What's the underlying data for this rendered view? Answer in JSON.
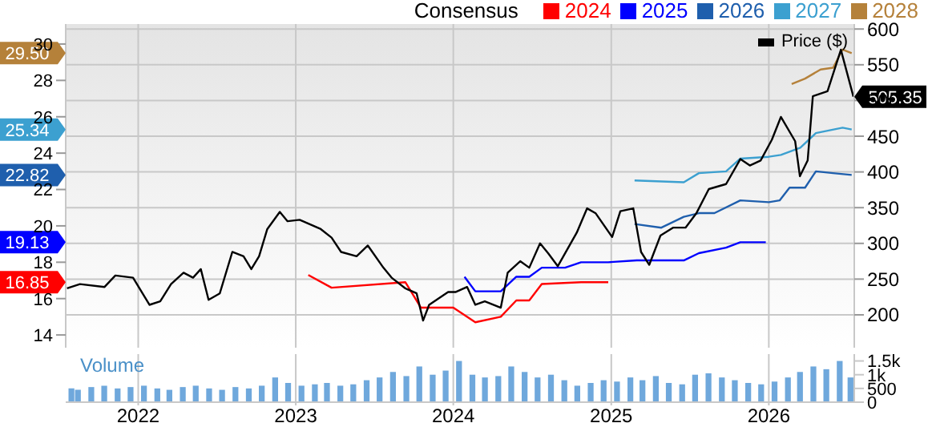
{
  "chart_data": [
    {
      "type": "line",
      "legend_title": "Consensus",
      "legend": "top right",
      "grid": true,
      "tick_labels": "y",
      "xlim": [
        "2021-07-17",
        "2026-07-18"
      ],
      "xticks": [
        {
          "value": "2022-01-01",
          "label": null
        },
        {
          "value": "2023-01-01",
          "label": null
        },
        {
          "value": "2024-01-01",
          "label": null
        },
        {
          "value": "2025-01-01",
          "label": null
        },
        {
          "value": "2026-01-01",
          "label": null
        }
      ],
      "ylim": [
        13.3,
        31.1
      ],
      "yticks": [
        14,
        16,
        18,
        20,
        22,
        24,
        26,
        28,
        30
      ],
      "annotations": [
        "16.85",
        "19.13",
        "22.82",
        "25.34",
        "29.50"
      ],
      "y2lim": [
        154,
        607
      ],
      "y2ticks": [
        200,
        250,
        300,
        350,
        400,
        450,
        500,
        550,
        600
      ],
      "series": [
        {
          "name": "2024",
          "color": "#ff0000",
          "x": [
            "2023-01-30",
            "2023-03-25",
            "2023-09-12",
            "2023-10-18",
            "2024-01-01",
            "2024-02-21",
            "2024-04-20",
            "2024-05-26",
            "2024-06-25",
            "2024-07-24",
            "2024-10-23",
            "2024-12-25"
          ],
          "values": [
            17.3,
            16.6,
            16.9,
            15.5,
            15.5,
            14.7,
            15.0,
            15.9,
            15.9,
            16.8,
            16.9,
            16.9
          ]
        },
        {
          "name": "2025",
          "color": "#0000ff",
          "x": [
            "2024-01-27",
            "2024-02-21",
            "2024-04-20",
            "2024-05-26",
            "2024-06-25",
            "2024-07-24",
            "2024-09-16",
            "2024-10-23",
            "2024-12-25",
            "2025-03-01",
            "2025-06-18",
            "2025-07-23",
            "2025-09-24",
            "2025-10-27",
            "2025-12-25"
          ],
          "values": [
            17.2,
            16.4,
            16.4,
            17.2,
            17.2,
            17.7,
            17.7,
            18.0,
            18.0,
            18.1,
            18.1,
            18.5,
            18.8,
            19.1,
            19.1
          ]
        },
        {
          "name": "2026",
          "color": "#1f5fad",
          "x": [
            "2025-02-24",
            "2025-04-27",
            "2025-06-18",
            "2025-07-23",
            "2025-08-28",
            "2025-10-27",
            "2026-01-01",
            "2026-01-26",
            "2026-02-18",
            "2026-03-26",
            "2026-04-20",
            "2026-05-30",
            "2026-07-12"
          ],
          "values": [
            20.1,
            19.9,
            20.5,
            20.7,
            20.7,
            21.4,
            21.3,
            21.4,
            22.1,
            22.1,
            23.0,
            22.9,
            22.8
          ]
        },
        {
          "name": "2027",
          "color": "#3ca0d0",
          "x": [
            "2025-02-24",
            "2025-06-18",
            "2025-07-23",
            "2025-09-24",
            "2025-10-27",
            "2026-01-01",
            "2026-01-29",
            "2026-03-15",
            "2026-04-20",
            "2026-06-21",
            "2026-07-12"
          ],
          "values": [
            22.5,
            22.4,
            22.9,
            23.0,
            23.7,
            23.8,
            23.9,
            24.3,
            25.1,
            25.4,
            25.3
          ]
        },
        {
          "name": "2028",
          "color": "#b5813a",
          "x": [
            "2026-02-23",
            "2026-03-26",
            "2026-05-01",
            "2026-05-30",
            "2026-06-21",
            "2026-07-12"
          ],
          "values": [
            27.8,
            28.1,
            28.6,
            28.7,
            29.7,
            29.5
          ]
        },
        {
          "name": "Price ($)",
          "color": "#000000",
          "axis": "y2",
          "x": [
            "2021-07-20",
            "2021-08-19",
            "2021-10-15",
            "2021-11-09",
            "2021-12-20",
            "2022-01-27",
            "2022-02-21",
            "2022-03-18",
            "2022-04-16",
            "2022-05-08",
            "2022-05-26",
            "2022-06-13",
            "2022-07-09",
            "2022-08-07",
            "2022-09-02",
            "2022-09-20",
            "2022-10-08",
            "2022-10-27",
            "2022-11-25",
            "2022-12-13",
            "2023-01-10",
            "2023-02-28",
            "2023-03-25",
            "2023-04-16",
            "2023-05-22",
            "2023-06-17",
            "2023-07-23",
            "2023-08-11",
            "2023-09-12",
            "2023-10-08",
            "2023-10-23",
            "2023-11-06",
            "2023-12-20",
            "2024-01-07",
            "2024-02-02",
            "2024-02-21",
            "2024-03-14",
            "2024-04-20",
            "2024-05-06",
            "2024-06-04",
            "2024-06-25",
            "2024-07-20",
            "2024-08-08",
            "2024-08-30",
            "2024-10-13",
            "2024-11-06",
            "2024-11-26",
            "2025-01-03",
            "2025-01-22",
            "2025-02-21",
            "2025-03-11",
            "2025-03-30",
            "2025-04-25",
            "2025-05-24",
            "2025-06-22",
            "2025-07-17",
            "2025-08-15",
            "2025-09-24",
            "2025-10-27",
            "2025-11-18",
            "2025-12-13",
            "2026-01-08",
            "2026-01-29",
            "2026-03-03",
            "2026-03-14",
            "2026-04-01",
            "2026-04-13",
            "2026-05-17",
            "2026-06-17",
            "2026-07-16"
          ],
          "values": [
            237,
            243,
            239,
            255,
            252,
            214,
            219,
            243,
            259,
            252,
            264,
            221,
            230,
            288,
            282,
            264,
            282,
            320,
            344,
            331,
            333,
            320,
            308,
            288,
            282,
            297,
            266,
            252,
            237,
            230,
            192,
            214,
            232,
            232,
            239,
            214,
            219,
            210,
            259,
            275,
            266,
            300,
            286,
            268,
            315,
            349,
            342,
            309,
            345,
            349,
            288,
            270,
            311,
            322,
            322,
            342,
            376,
            383,
            418,
            409,
            416,
            445,
            477,
            443,
            394,
            416,
            506,
            513,
            571,
            505.35
          ],
          "value_labels": [
            null,
            null,
            null,
            null,
            null,
            null,
            null,
            null,
            null,
            null,
            null,
            null,
            null,
            null,
            null,
            null,
            null,
            null,
            null,
            null,
            null,
            null,
            null,
            null,
            null,
            null,
            null,
            null,
            null,
            null,
            null,
            null,
            null,
            null,
            null,
            null,
            null,
            null,
            null,
            null,
            null,
            null,
            null,
            null,
            null,
            null,
            null,
            null,
            null,
            null,
            null,
            null,
            null,
            null,
            null,
            null,
            null,
            null,
            null,
            null,
            null,
            null,
            null,
            null,
            null,
            null,
            null,
            null,
            null,
            "505.35"
          ]
        }
      ]
    },
    {
      "type": "bar",
      "ylabel": "Volume",
      "grid": "x",
      "color": "#6fa8dc",
      "xlim": [
        "2021-07-17",
        "2026-07-18"
      ],
      "xticks": [
        {
          "value": "2022-01-01",
          "label": "2022"
        },
        {
          "value": "2023-01-01",
          "label": "2023"
        },
        {
          "value": "2024-01-01",
          "label": "2024"
        },
        {
          "value": "2025-01-01",
          "label": "2025"
        },
        {
          "value": "2026-01-01",
          "label": "2026"
        }
      ],
      "ylim": [
        0,
        1750
      ],
      "yticks": [
        0,
        500,
        {
          "value": 1000,
          "label": "1k"
        },
        {
          "value": 1500,
          "label": "1.5k"
        }
      ],
      "x": [
        "2021-07-31",
        "2021-08-15",
        "2021-09-15",
        "2021-10-15",
        "2021-11-15",
        "2021-12-15",
        "2022-01-15",
        "2022-02-15",
        "2022-03-15",
        "2022-04-15",
        "2022-05-15",
        "2022-06-15",
        "2022-07-15",
        "2022-08-15",
        "2022-09-15",
        "2022-10-15",
        "2022-11-15",
        "2022-12-15",
        "2023-01-15",
        "2023-02-15",
        "2023-03-15",
        "2023-04-15",
        "2023-05-15",
        "2023-06-15",
        "2023-07-15",
        "2023-08-15",
        "2023-09-15",
        "2023-10-15",
        "2023-11-15",
        "2023-12-15",
        "2024-01-15",
        "2024-02-15",
        "2024-03-15",
        "2024-04-15",
        "2024-05-15",
        "2024-06-15",
        "2024-07-15",
        "2024-08-15",
        "2024-09-15",
        "2024-10-15",
        "2024-11-15",
        "2024-12-15",
        "2025-01-15",
        "2025-02-15",
        "2025-03-15",
        "2025-04-15",
        "2025-05-15",
        "2025-06-15",
        "2025-07-15",
        "2025-08-15",
        "2025-09-15",
        "2025-10-15",
        "2025-11-15",
        "2025-12-15",
        "2026-01-15",
        "2026-02-15",
        "2026-03-15",
        "2026-04-15",
        "2026-05-15",
        "2026-06-15",
        "2026-07-10"
      ],
      "values": [
        500,
        450,
        550,
        600,
        500,
        550,
        600,
        500,
        450,
        550,
        600,
        500,
        450,
        550,
        500,
        600,
        900,
        700,
        600,
        650,
        700,
        600,
        650,
        800,
        900,
        1100,
        950,
        1300,
        1000,
        1150,
        1500,
        1000,
        900,
        950,
        1300,
        1100,
        900,
        1000,
        800,
        600,
        700,
        800,
        750,
        900,
        800,
        950,
        700,
        650,
        1000,
        1050,
        900,
        800,
        700,
        650,
        750,
        900,
        1100,
        1300,
        1200,
        1500,
        900
      ]
    }
  ]
}
